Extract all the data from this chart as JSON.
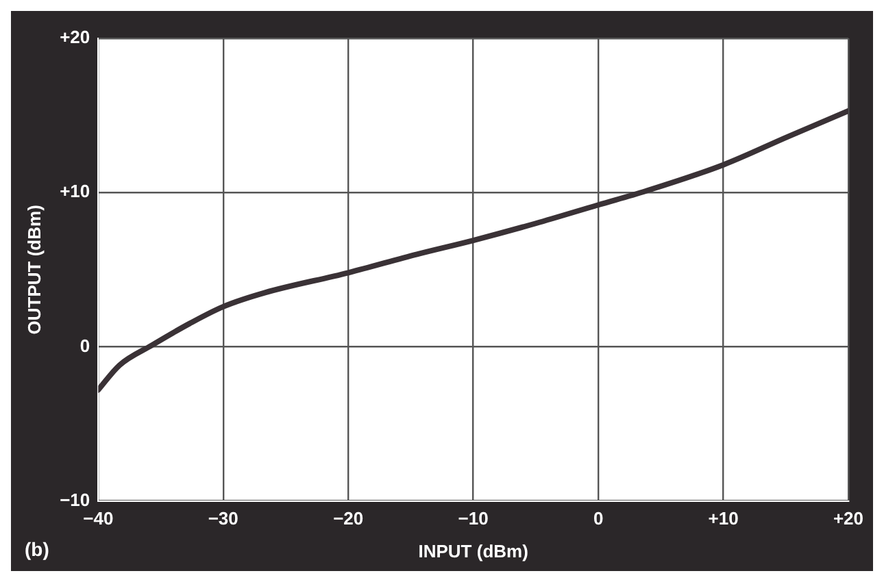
{
  "chart_data": {
    "type": "line",
    "xlabel": "INPUT (dBm)",
    "ylabel": "OUTPUT (dBm)",
    "x": [
      -40,
      -38.3,
      -35.7,
      -32.7,
      -30,
      -26.7,
      -20,
      -14.5,
      -10,
      -5,
      0,
      3.8,
      10,
      15.1,
      20
    ],
    "series": [
      {
        "color": "#3a3236",
        "values": [
          -2.8,
          -1.2,
          0.1,
          1.5,
          2.6,
          3.5,
          4.8,
          6.0,
          6.9,
          8.0,
          9.2,
          10.1,
          11.8,
          13.6,
          15.3
        ]
      }
    ],
    "xlim": [
      -40,
      20
    ],
    "xticks": [
      -40,
      -30,
      -20,
      -10,
      {
        "value": 0,
        "label": "0"
      },
      {
        "value": 10,
        "label": "+10"
      },
      {
        "value": 20,
        "label": "+20"
      }
    ],
    "ylim": [
      -10,
      20
    ],
    "yticks": [
      -10,
      {
        "value": 0,
        "label": "0"
      },
      {
        "value": 10,
        "label": "+10"
      },
      {
        "value": 20,
        "label": "+20"
      }
    ],
    "grid": true,
    "legend": false,
    "marker": "none",
    "line_style": "solid",
    "annotations": [
      "(b)"
    ]
  }
}
